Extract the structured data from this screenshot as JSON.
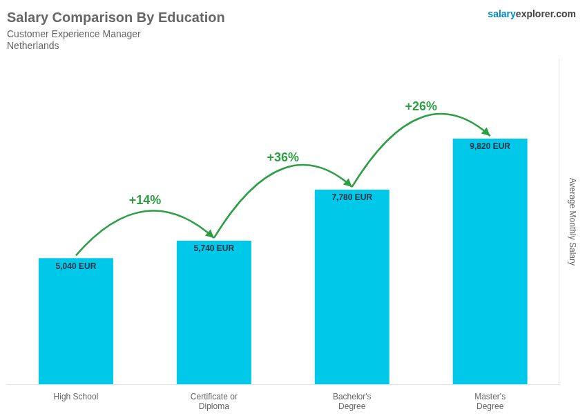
{
  "chart_data": {
    "type": "bar",
    "title": "Salary Comparison By Education",
    "subtitle": [
      "Customer Experience Manager",
      "Netherlands"
    ],
    "watermark": [
      "salary",
      "explorer.com"
    ],
    "ylabel": "Average Monthly Salary",
    "categories": [
      "High School",
      "Certificate or\nDiploma",
      "Bachelor's\nDegree",
      "Master's\nDegree"
    ],
    "values": [
      5040,
      5740,
      7780,
      9820
    ],
    "value_labels": [
      "5,040 EUR",
      "5,740 EUR",
      "7,780 EUR",
      "9,820 EUR"
    ],
    "data_labels": true,
    "color": "#00c8e8",
    "ylim": [
      0,
      13000
    ],
    "tick_labels": "x",
    "grid": false,
    "legend": false,
    "annotations": [
      {
        "text": "+14%",
        "from": "High School",
        "to": "Certificate or\nDiploma"
      },
      {
        "text": "+36%",
        "from": "Certificate or\nDiploma",
        "to": "Bachelor's\nDegree"
      },
      {
        "text": "+26%",
        "from": "Bachelor's\nDegree",
        "to": "Master's\nDegree"
      }
    ]
  }
}
